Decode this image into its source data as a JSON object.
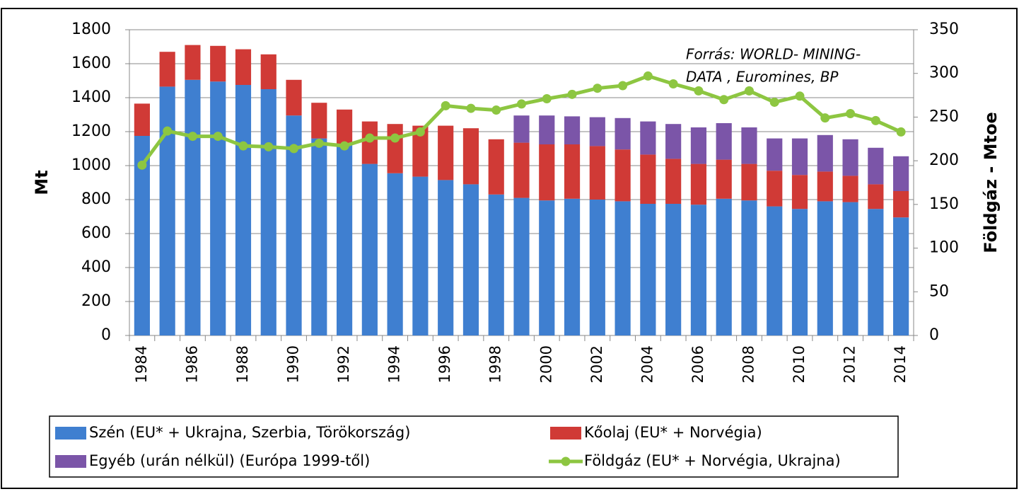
{
  "chart_data": {
    "type": "bar",
    "categories": [
      "1984",
      null,
      "1986",
      null,
      "1988",
      null,
      "1990",
      null,
      "1992",
      null,
      "1994",
      null,
      "1996",
      null,
      "1998",
      null,
      "2000",
      null,
      "2002",
      null,
      "2004",
      null,
      "2006",
      null,
      "2008",
      null,
      "2010",
      null,
      "2012",
      null,
      "2014"
    ],
    "y_label": "Mt",
    "y2_label": "Földgáz - Mtoe",
    "annotations": [
      "Forrás: WORLD- MINING-",
      "DATA , Euromines, BP"
    ],
    "ylim": [
      0,
      1800
    ],
    "yticks": [
      0,
      200,
      400,
      600,
      800,
      1000,
      1200,
      1400,
      1600,
      1800
    ],
    "y2lim": [
      0,
      350
    ],
    "y2ticks": [
      0,
      50,
      100,
      150,
      200,
      250,
      300,
      350
    ],
    "grid": true,
    "legend": "bottom",
    "stacked": true,
    "series": [
      {
        "name": "Szén (EU* + Ukrajna, Szerbia, Törökország)",
        "color": "#3f7fd0",
        "type": "bar",
        "values": [
          1175,
          1465,
          1505,
          1495,
          1475,
          1450,
          1295,
          1160,
          1120,
          1010,
          955,
          935,
          915,
          890,
          830,
          810,
          795,
          805,
          800,
          790,
          775,
          775,
          770,
          805,
          795,
          760,
          745,
          790,
          785,
          745,
          695
        ]
      },
      {
        "name": "Kőolaj (EU* + Norvégia)",
        "color": "#d03a36",
        "type": "bar",
        "values": [
          190,
          205,
          205,
          210,
          210,
          205,
          210,
          210,
          210,
          250,
          290,
          300,
          320,
          330,
          325,
          325,
          330,
          320,
          315,
          305,
          290,
          265,
          240,
          230,
          215,
          210,
          200,
          175,
          155,
          145,
          155
        ]
      },
      {
        "name": "Egyéb (urán nélkül) (Európa 1999-től)",
        "color": "#7b55a8",
        "type": "bar",
        "values": [
          null,
          null,
          null,
          null,
          null,
          null,
          null,
          null,
          null,
          null,
          null,
          null,
          null,
          null,
          null,
          160,
          170,
          165,
          170,
          185,
          195,
          205,
          215,
          215,
          215,
          190,
          215,
          215,
          215,
          215,
          205
        ]
      },
      {
        "name": "Földgáz (EU* + Norvégia, Ukrajna)",
        "color": "#8dc641",
        "type": "line",
        "axis": "y2",
        "values": [
          195,
          234,
          228,
          228,
          217,
          216,
          214,
          220,
          217,
          226,
          226,
          233,
          263,
          260,
          258,
          265,
          271,
          276,
          283,
          286,
          297,
          288,
          280,
          270,
          280,
          267,
          274,
          249,
          254,
          246,
          233
        ]
      }
    ]
  }
}
